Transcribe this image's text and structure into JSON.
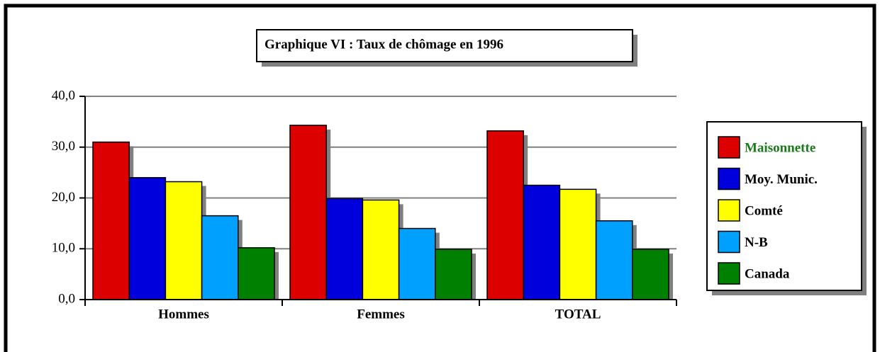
{
  "chart_data": {
    "type": "bar",
    "title": "Graphique VI : Taux de chômage en 1996",
    "categories": [
      "Hommes",
      "Femmes",
      "TOTAL"
    ],
    "series": [
      {
        "name": "Maisonnette",
        "color": "#dd0000",
        "values": [
          31.0,
          34.3,
          33.2
        ]
      },
      {
        "name": "Moy. Munic.",
        "color": "#0000dd",
        "values": [
          24.0,
          19.9,
          22.5
        ]
      },
      {
        "name": "Comté",
        "color": "#ffff00",
        "values": [
          23.2,
          19.6,
          21.7
        ]
      },
      {
        "name": "N-B",
        "color": "#00a0ff",
        "values": [
          16.5,
          14.0,
          15.5
        ]
      },
      {
        "name": "Canada",
        "color": "#008000",
        "values": [
          10.2,
          9.9,
          9.9
        ]
      }
    ],
    "ylim": [
      0,
      40
    ],
    "yticks": [
      {
        "value": 0,
        "label": "0,0"
      },
      {
        "value": 10,
        "label": "10,0"
      },
      {
        "value": 20,
        "label": "20,0"
      },
      {
        "value": 30,
        "label": "30,0"
      },
      {
        "value": 40,
        "label": "40,0"
      }
    ],
    "grid": true,
    "legend": "right"
  }
}
